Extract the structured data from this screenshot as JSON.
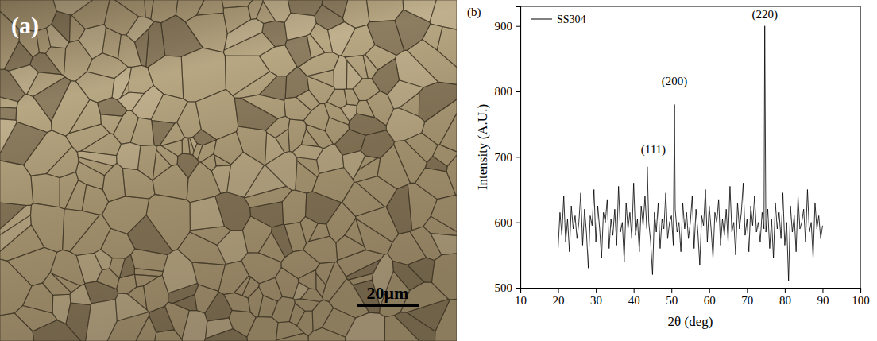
{
  "micrograph": {
    "label": "(a)",
    "scale_bar": "20μm"
  },
  "chart_data": {
    "type": "line",
    "panel_label": "(b)",
    "x_label": "2θ (deg)",
    "y_label": "Intensity (A.U.)",
    "xlim": [
      10,
      100
    ],
    "xticks": [
      10,
      20,
      30,
      40,
      50,
      60,
      70,
      80,
      90,
      100
    ],
    "ylim": [
      500,
      930
    ],
    "yticks": [
      500,
      600,
      700,
      800,
      900
    ],
    "legend": "top-left",
    "grid": false,
    "x": [
      20,
      20.5,
      21,
      21.5,
      22,
      22.5,
      23,
      23.5,
      24,
      24.5,
      25,
      25.5,
      26,
      26.5,
      27,
      27.5,
      28,
      28.5,
      29,
      29.5,
      30,
      30.5,
      31,
      31.5,
      32,
      32.5,
      33,
      33.5,
      34,
      34.5,
      35,
      35.5,
      36,
      36.5,
      37,
      37.5,
      38,
      38.5,
      39,
      39.5,
      40,
      40.5,
      41,
      41.5,
      42,
      42.5,
      43,
      43.5,
      43.6,
      44,
      44.5,
      45,
      45.5,
      46,
      46.5,
      47,
      47.5,
      48,
      48.5,
      49,
      49.5,
      50,
      50.5,
      50.8,
      51,
      51.5,
      52,
      52.5,
      53,
      53.5,
      54,
      54.5,
      55,
      55.5,
      56,
      56.5,
      57,
      57.5,
      58,
      58.5,
      59,
      59.5,
      60,
      60.5,
      61,
      61.5,
      62,
      62.5,
      63,
      63.5,
      64,
      64.5,
      65,
      65.5,
      66,
      66.5,
      67,
      67.5,
      68,
      68.5,
      69,
      69.5,
      70,
      70.5,
      71,
      71.5,
      72,
      72.5,
      73,
      73.5,
      74,
      74.5,
      74.7,
      75,
      75.5,
      76,
      76.5,
      77,
      77.5,
      78,
      78.5,
      79,
      79.5,
      80,
      80.5,
      81,
      81.5,
      82,
      82.5,
      83,
      83.5,
      84,
      84.5,
      85,
      85.5,
      86,
      86.5,
      87,
      87.5,
      88,
      88.5,
      89,
      89.5,
      90
    ],
    "series": [
      {
        "name": "SS304",
        "color": "#000000",
        "line_style": "solid",
        "values": [
          560,
          615,
          580,
          640,
          570,
          605,
          555,
          625,
          590,
          610,
          575,
          600,
          645,
          565,
          620,
          585,
          530,
          610,
          595,
          650,
          570,
          625,
          590,
          545,
          615,
          600,
          635,
          560,
          605,
          580,
          620,
          565,
          655,
          585,
          600,
          540,
          630,
          590,
          615,
          575,
          660,
          580,
          605,
          555,
          625,
          595,
          640,
          590,
          685,
          600,
          570,
          520,
          615,
          585,
          630,
          560,
          605,
          590,
          645,
          575,
          600,
          610,
          565,
          780,
          620,
          585,
          600,
          555,
          630,
          590,
          615,
          575,
          600,
          640,
          560,
          620,
          585,
          535,
          610,
          595,
          650,
          570,
          625,
          590,
          545,
          615,
          600,
          635,
          565,
          605,
          580,
          620,
          570,
          655,
          585,
          600,
          550,
          630,
          590,
          615,
          660,
          580,
          605,
          555,
          625,
          595,
          640,
          585,
          600,
          570,
          615,
          590,
          900,
          585,
          620,
          560,
          605,
          545,
          630,
          590,
          615,
          575,
          645,
          565,
          600,
          510,
          625,
          585,
          610,
          555,
          640,
          590,
          600,
          620,
          570,
          650,
          585,
          600,
          545,
          630,
          590,
          610,
          575,
          595
        ]
      }
    ],
    "annotations": [
      {
        "text": "(111)",
        "x": 45.2,
        "y": 705
      },
      {
        "text": "(200)",
        "x": 50.8,
        "y": 810
      },
      {
        "text": "(220)",
        "x": 74.7,
        "y": 912
      }
    ]
  }
}
